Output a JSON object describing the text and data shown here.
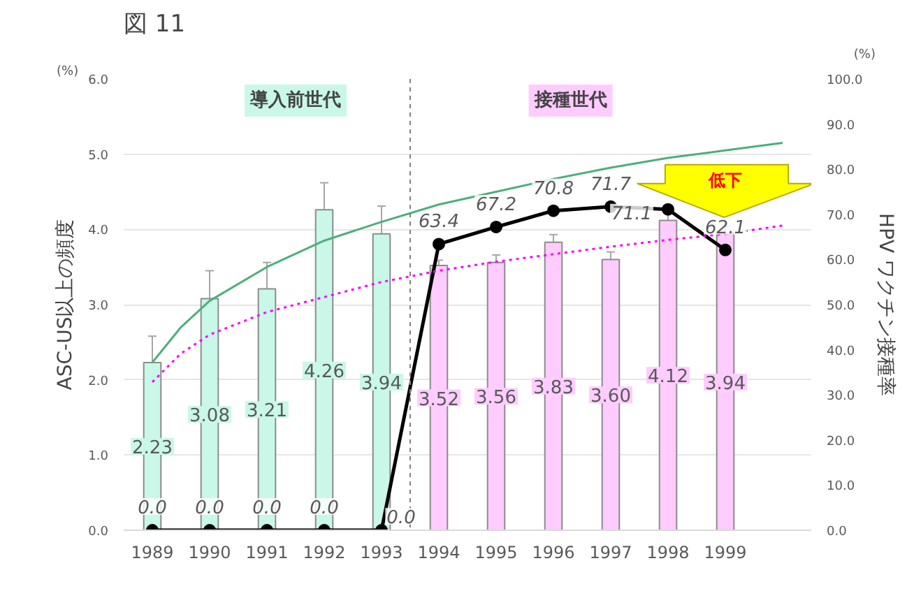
{
  "chart_data": {
    "type": "bar",
    "title": "図 11",
    "ylabel": "ASC-US以上の頻度",
    "y2label": "HPV ワクチン接種率",
    "x": [
      1989,
      1990,
      1991,
      1992,
      1993,
      1994,
      1995,
      1996,
      1997,
      1998,
      1999
    ],
    "xlim": [
      1988.5,
      2000.5
    ],
    "xticks": [
      1989,
      1990,
      1991,
      1992,
      1993,
      1994,
      1995,
      1996,
      1997,
      1998,
      1999
    ],
    "ylim": [
      0,
      6
    ],
    "yticks": [
      {
        "value": 0,
        "label": "0.0"
      },
      {
        "value": 1,
        "label": "1.0"
      },
      {
        "value": 2,
        "label": "2.0"
      },
      {
        "value": 3,
        "label": "3.0"
      },
      {
        "value": 4,
        "label": "4.0"
      },
      {
        "value": 5,
        "label": "5.0"
      },
      {
        "value": 6,
        "label": "6.0"
      }
    ],
    "y2lim": [
      0,
      100
    ],
    "y2ticks": [
      {
        "value": 0,
        "label": "0.0"
      },
      {
        "value": 10,
        "label": "10.0"
      },
      {
        "value": 20,
        "label": "20.0"
      },
      {
        "value": 30,
        "label": "30.0"
      },
      {
        "value": 40,
        "label": "40.0"
      },
      {
        "value": 50,
        "label": "50.0"
      },
      {
        "value": 60,
        "label": "60.0"
      },
      {
        "value": 70,
        "label": "70.0"
      },
      {
        "value": 80,
        "label": "80.0"
      },
      {
        "value": 90,
        "label": "90.0"
      },
      {
        "value": 100,
        "label": "100.0"
      }
    ],
    "grid": "y",
    "series": [
      {
        "values": [
          2.23,
          3.08,
          3.21,
          4.26,
          3.94,
          3.52,
          3.56,
          3.83,
          3.6,
          4.12,
          3.94
        ],
        "colors": [
          "#c9f7e8",
          "#c9f7e8",
          "#c9f7e8",
          "#c9f7e8",
          "#c9f7e8",
          "#ffccff",
          "#ffccff",
          "#ffccff",
          "#ffccff",
          "#ffccff",
          "#ffccff"
        ],
        "errors": [
          0.35,
          0.37,
          0.35,
          0.36,
          0.37,
          0.07,
          0.1,
          0.1,
          0.1,
          0.1,
          0.1
        ],
        "value_labels": [
          "2.23",
          "3.08",
          "3.21",
          "4.26",
          "3.94",
          "3.52",
          "3.56",
          "3.83",
          "3.60",
          "4.12",
          "3.94"
        ]
      },
      {
        "type": "line",
        "axis": "y2",
        "color": "#000000",
        "marker": "circle",
        "values": [
          0,
          0,
          0,
          0,
          0,
          63.4,
          67.2,
          70.8,
          71.7,
          71.1,
          62.1
        ],
        "value_labels": [
          "0.0",
          "0.0",
          "0.0",
          "0.0",
          "0.0",
          "63.4",
          "67.2",
          "70.8",
          "71.7",
          "71.1",
          "62.1"
        ]
      },
      {
        "type": "line",
        "color": "#4daf7c",
        "x": [
          1989,
          1989.5,
          1990,
          1991,
          1992,
          1993,
          1994,
          1995,
          1996,
          1997,
          1998,
          1999,
          2000
        ],
        "values": [
          2.23,
          2.7,
          3.05,
          3.5,
          3.85,
          4.1,
          4.33,
          4.5,
          4.67,
          4.82,
          4.95,
          5.05,
          5.15
        ]
      },
      {
        "type": "line",
        "color": "#ff00ff",
        "line_style": "dotted",
        "x": [
          1989,
          1989.5,
          1990,
          1991,
          1992,
          1993,
          1994,
          1995,
          1996,
          1997,
          1998,
          1999,
          2000
        ],
        "values": [
          1.97,
          2.35,
          2.6,
          2.9,
          3.1,
          3.3,
          3.45,
          3.57,
          3.67,
          3.77,
          3.86,
          3.94,
          4.05
        ]
      }
    ],
    "ref_lines": [
      {
        "axis": "x",
        "value": 1993.5,
        "color": "#808080",
        "line_style": "dashed"
      }
    ],
    "annotations": [
      "導入前世代",
      "接種世代",
      "低下",
      "(%)",
      "(%)"
    ]
  }
}
